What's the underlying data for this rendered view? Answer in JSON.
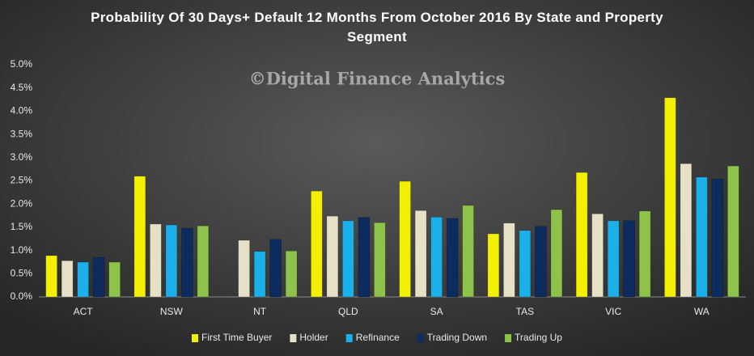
{
  "chart_data": {
    "type": "bar",
    "title": "Probability  Of 30 Days+ Default 12 Months From October 2016 By State and Property Segment",
    "annotation": "©Digital Finance Analytics",
    "categories": [
      "ACT",
      "NSW",
      "NT",
      "QLD",
      "SA",
      "TAS",
      "VIC",
      "WA"
    ],
    "series": [
      {
        "name": "First Time Buyer",
        "color": "#f2f000",
        "values": [
          0.89,
          2.6,
          null,
          2.28,
          2.49,
          1.36,
          2.68,
          4.29
        ]
      },
      {
        "name": "Holder",
        "color": "#e6e0c6",
        "values": [
          0.78,
          1.57,
          1.22,
          1.74,
          1.86,
          1.59,
          1.79,
          2.87
        ]
      },
      {
        "name": "Refinance",
        "color": "#1bb0ea",
        "values": [
          0.75,
          1.55,
          0.98,
          1.64,
          1.72,
          1.43,
          1.64,
          2.58
        ]
      },
      {
        "name": "Trading Down",
        "color": "#0c2b5e",
        "values": [
          0.85,
          1.48,
          1.24,
          1.71,
          1.69,
          1.52,
          1.64,
          2.54
        ]
      },
      {
        "name": "Trading Up",
        "color": "#8dc24b",
        "values": [
          0.75,
          1.53,
          0.99,
          1.6,
          1.97,
          1.88,
          1.85,
          2.82
        ]
      }
    ],
    "ylim": [
      0,
      5
    ],
    "yticks": [
      {
        "value": 0,
        "label": "0.0%"
      },
      {
        "value": 0.5,
        "label": "0.5%"
      },
      {
        "value": 1,
        "label": "1.0%"
      },
      {
        "value": 1.5,
        "label": "1.5%"
      },
      {
        "value": 2,
        "label": "2.0%"
      },
      {
        "value": 2.5,
        "label": "2.5%"
      },
      {
        "value": 3,
        "label": "3.0%"
      },
      {
        "value": 3.5,
        "label": "3.5%"
      },
      {
        "value": 4,
        "label": "4.0%"
      },
      {
        "value": 4.5,
        "label": "4.5%"
      },
      {
        "value": 5,
        "label": "5.0%"
      }
    ],
    "grid": false,
    "legend": "bottom"
  }
}
